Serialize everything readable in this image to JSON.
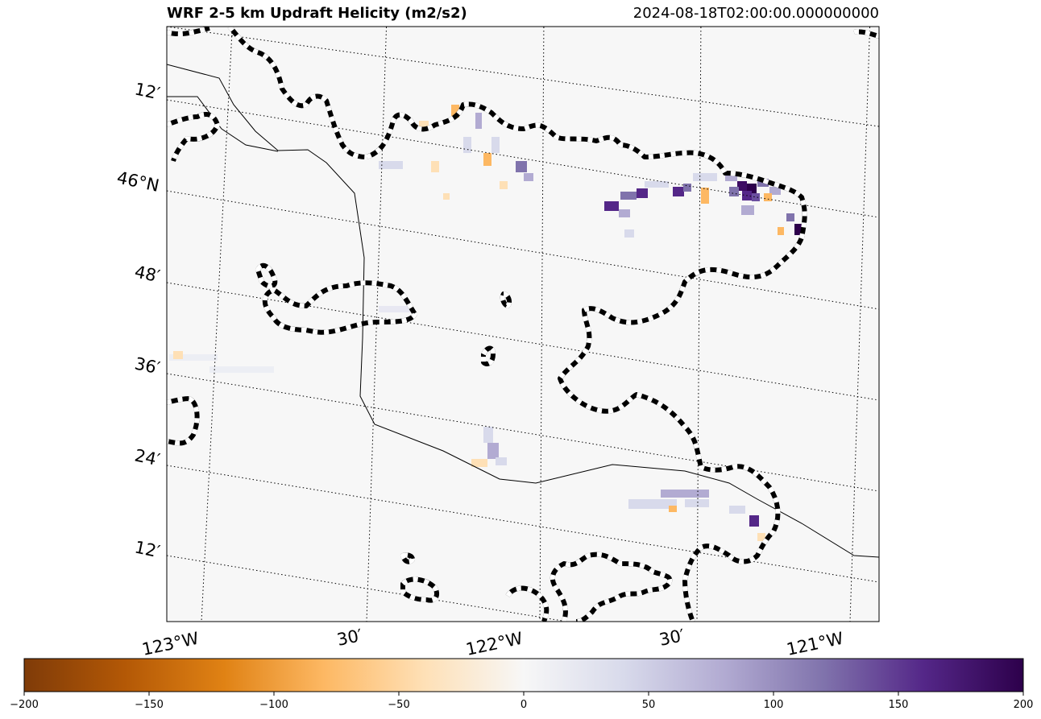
{
  "title": "WRF 2-5 km Updraft Helicity (m2/s2)",
  "timestamp": "2024-08-18T02:00:00.000000000",
  "map": {
    "lat_labels": [
      "12′",
      "46°N",
      "48′",
      "36′",
      "24′",
      "12′"
    ],
    "lon_labels": [
      "123°W",
      "30′",
      "122°W",
      "30′",
      "121°W"
    ]
  },
  "colorbar": {
    "min": -200,
    "max": 200,
    "ticks": [
      -200,
      -150,
      -100,
      -50,
      0,
      50,
      100,
      150,
      200
    ],
    "tick_labels": [
      "−200",
      "−150",
      "−100",
      "−50",
      "0",
      "50",
      "100",
      "150",
      "200"
    ],
    "colors": [
      "#7f3b08",
      "#b35806",
      "#e08214",
      "#fdb863",
      "#fee0b6",
      "#f7f7f7",
      "#d8daeb",
      "#b2abd2",
      "#8073ac",
      "#542788",
      "#2d004b"
    ]
  },
  "colors": {
    "background": "#f7f7f7",
    "state_border": "#000000",
    "contour": "#000000"
  }
}
